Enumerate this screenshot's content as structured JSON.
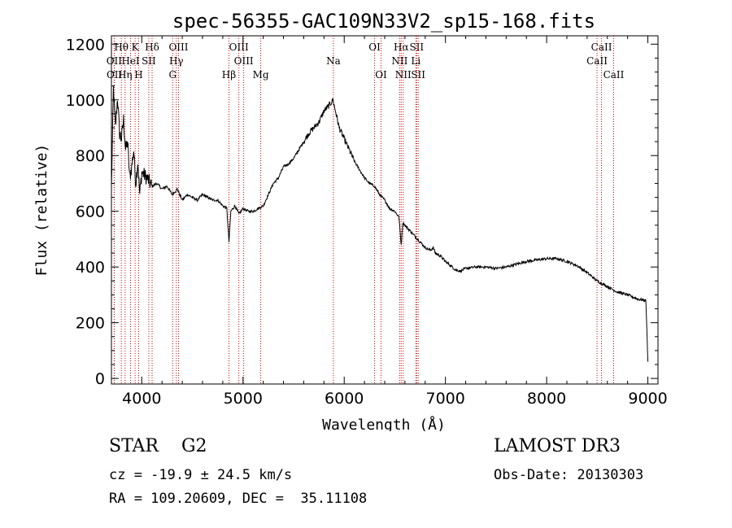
{
  "chart_data": {
    "type": "line",
    "title": "spec-56355-GAC109N33V2_sp15-168.fits",
    "xlabel": "Wavelength (Å)",
    "ylabel": "Flux (relative)",
    "xlim": [
      3700,
      9100
    ],
    "ylim": [
      -20,
      1230
    ],
    "xticks": [
      4000,
      5000,
      6000,
      7000,
      8000,
      9000
    ],
    "yticks": [
      0,
      200,
      400,
      600,
      800,
      1000,
      1200
    ],
    "series": [
      {
        "name": "flux",
        "x": [
          3700,
          3720,
          3740,
          3760,
          3780,
          3800,
          3820,
          3840,
          3860,
          3880,
          3900,
          3920,
          3940,
          3960,
          3980,
          4000,
          4050,
          4100,
          4150,
          4200,
          4250,
          4300,
          4350,
          4400,
          4450,
          4500,
          4550,
          4600,
          4650,
          4700,
          4750,
          4800,
          4840,
          4861,
          4880,
          4920,
          4960,
          5000,
          5050,
          5100,
          5150,
          5200,
          5250,
          5300,
          5350,
          5400,
          5450,
          5500,
          5550,
          5600,
          5650,
          5700,
          5750,
          5800,
          5850,
          5890,
          5900,
          5920,
          5950,
          6000,
          6050,
          6100,
          6150,
          6200,
          6250,
          6300,
          6350,
          6400,
          6450,
          6500,
          6540,
          6563,
          6580,
          6600,
          6650,
          6700,
          6750,
          6800,
          6850,
          6880,
          6900,
          6950,
          7000,
          7050,
          7100,
          7150,
          7200,
          7300,
          7400,
          7500,
          7600,
          7700,
          7800,
          7900,
          8000,
          8100,
          8200,
          8300,
          8400,
          8500,
          8600,
          8700,
          8800,
          8900,
          8980,
          9000
        ],
        "values": [
          680,
          1040,
          900,
          1010,
          880,
          860,
          930,
          820,
          850,
          720,
          760,
          820,
          700,
          780,
          660,
          740,
          720,
          690,
          700,
          680,
          690,
          660,
          680,
          640,
          660,
          650,
          640,
          660,
          650,
          640,
          640,
          620,
          610,
          490,
          600,
          620,
          590,
          610,
          600,
          600,
          610,
          620,
          660,
          700,
          720,
          760,
          770,
          790,
          820,
          850,
          880,
          900,
          920,
          960,
          980,
          1000,
          980,
          950,
          900,
          860,
          820,
          780,
          750,
          720,
          700,
          690,
          660,
          640,
          610,
          600,
          580,
          480,
          560,
          550,
          530,
          510,
          490,
          470,
          460,
          470,
          450,
          440,
          420,
          405,
          390,
          385,
          395,
          400,
          400,
          395,
          400,
          410,
          420,
          425,
          430,
          430,
          420,
          405,
          380,
          350,
          330,
          310,
          300,
          285,
          280,
          60
        ]
      }
    ],
    "spectral_lines": [
      {
        "label": "Hθ",
        "wavelength": 3798,
        "row": 1
      },
      {
        "label": "OII",
        "wavelength": 3727,
        "row": 2
      },
      {
        "label": "OII",
        "wavelength": 3729,
        "row": 3
      },
      {
        "label": "Hη",
        "wavelength": 3835,
        "row": 3
      },
      {
        "label": "K",
        "wavelength": 3934,
        "row": 1
      },
      {
        "label": "HeI",
        "wavelength": 3889,
        "row": 2
      },
      {
        "label": "H",
        "wavelength": 3969,
        "row": 3
      },
      {
        "label": "SII",
        "wavelength": 4069,
        "row": 2
      },
      {
        "label": "Hδ",
        "wavelength": 4102,
        "row": 1
      },
      {
        "label": "OIII",
        "wavelength": 4363,
        "row": 1
      },
      {
        "label": "Hγ",
        "wavelength": 4341,
        "row": 2
      },
      {
        "label": "G",
        "wavelength": 4305,
        "row": 3
      },
      {
        "label": "OIII",
        "wavelength": 4959,
        "row": 1
      },
      {
        "label": "OIII",
        "wavelength": 5007,
        "row": 2
      },
      {
        "label": "Hβ",
        "wavelength": 4861,
        "row": 3
      },
      {
        "label": "Mg",
        "wavelength": 5175,
        "row": 3
      },
      {
        "label": "Na",
        "wavelength": 5893,
        "row": 2
      },
      {
        "label": "OI",
        "wavelength": 6300,
        "row": 1
      },
      {
        "label": "OI",
        "wavelength": 6364,
        "row": 3
      },
      {
        "label": "Hα",
        "wavelength": 6563,
        "row": 1
      },
      {
        "label": "NII",
        "wavelength": 6548,
        "row": 2
      },
      {
        "label": "NII",
        "wavelength": 6583,
        "row": 3
      },
      {
        "label": "SII",
        "wavelength": 6716,
        "row": 1
      },
      {
        "label": "Li",
        "wavelength": 6708,
        "row": 2
      },
      {
        "label": "SII",
        "wavelength": 6731,
        "row": 3
      },
      {
        "label": "CaII",
        "wavelength": 8542,
        "row": 1
      },
      {
        "label": "CaII",
        "wavelength": 8498,
        "row": 2
      },
      {
        "label": "CaII",
        "wavelength": 8662,
        "row": 3
      }
    ]
  },
  "info": {
    "class_text": "STAR    G2",
    "survey_text": "LAMOST DR3",
    "cz_text": "cz = -19.9 ± 24.5 km/s",
    "obs_date_text": "Obs-Date: 20130303",
    "radec_text": "RA = 109.20609, DEC =  35.11108"
  }
}
